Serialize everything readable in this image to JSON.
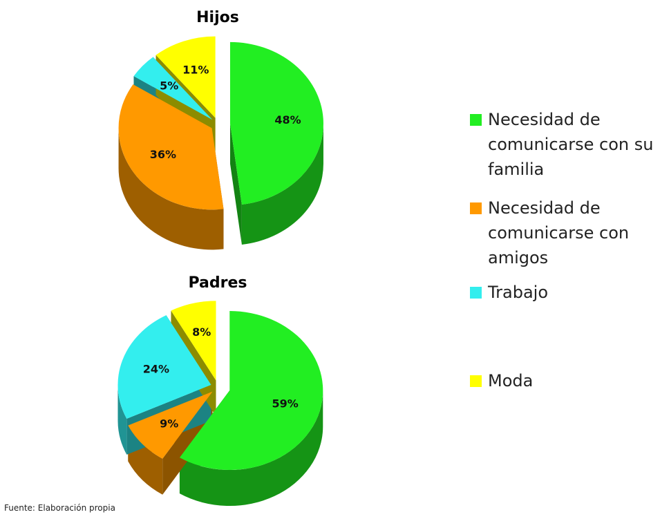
{
  "chart_data": [
    {
      "type": "pie",
      "title": "Hijos",
      "categories": [
        "Necesidad de comunicarse con su familia",
        "Necesidad de comunicarse con amigos",
        "Trabajo",
        "Moda"
      ],
      "values": [
        48,
        36,
        5,
        11
      ],
      "value_labels": [
        "48%",
        "36%",
        "5%",
        "11%"
      ],
      "colors": [
        "#22ee22",
        "#ff9900",
        "#33eeee",
        "#ffff00"
      ]
    },
    {
      "type": "pie",
      "title": "Padres",
      "categories": [
        "Necesidad de comunicarse con su familia",
        "Necesidad de comunicarse con amigos",
        "Trabajo",
        "Moda"
      ],
      "values": [
        59,
        9,
        24,
        8
      ],
      "value_labels": [
        "59%",
        "9%",
        "24%",
        "8%"
      ],
      "colors": [
        "#22ee22",
        "#ff9900",
        "#33eeee",
        "#ffff00"
      ]
    }
  ],
  "source": "Fuente: Elaboración propia"
}
